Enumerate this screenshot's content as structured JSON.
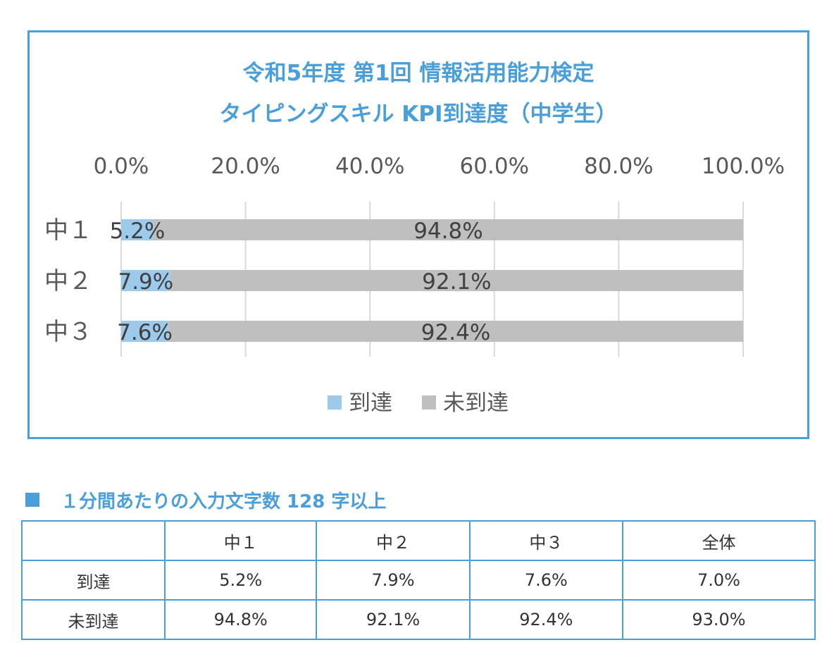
{
  "chart_data": {
    "type": "bar",
    "orientation": "horizontal",
    "stacked": true,
    "title_lines": [
      "令和5年度 第1回 情報活用能力検定",
      "タイピングスキル KPI到達度（中学生）"
    ],
    "categories": [
      "中１",
      "中２",
      "中３"
    ],
    "series": [
      {
        "name": "到達",
        "values": [
          5.2,
          7.9,
          7.6
        ],
        "labels": [
          "5.2%",
          "7.9%",
          "7.6%"
        ],
        "color": "#9dc9eb"
      },
      {
        "name": "未到達",
        "values": [
          94.8,
          92.1,
          92.4
        ],
        "labels": [
          "94.8%",
          "92.1%",
          "92.4%"
        ],
        "color": "#bfbfbf"
      }
    ],
    "xlim": [
      0,
      100
    ],
    "x_ticks": [
      0,
      20,
      40,
      60,
      80,
      100
    ],
    "x_tick_labels": [
      "0.0%",
      "20.0%",
      "40.0%",
      "60.0%",
      "80.0%",
      "100.0%"
    ],
    "axis_position": "top",
    "grid": true,
    "legend_position": "bottom"
  },
  "table": {
    "title": "１分間あたりの入力文字数 128 字以上",
    "headers": [
      "",
      "中１",
      "中２",
      "中３",
      "全体"
    ],
    "rows": [
      [
        "到達",
        "5.2%",
        "7.9%",
        "7.6%",
        "7.0%"
      ],
      [
        "未到達",
        "94.8%",
        "92.1%",
        "92.4%",
        "93.0%"
      ]
    ]
  },
  "colors": {
    "accent": "#4a9fd8",
    "reached": "#9dc9eb",
    "not_reached": "#bfbfbf",
    "grid": "#d9d9d9"
  }
}
